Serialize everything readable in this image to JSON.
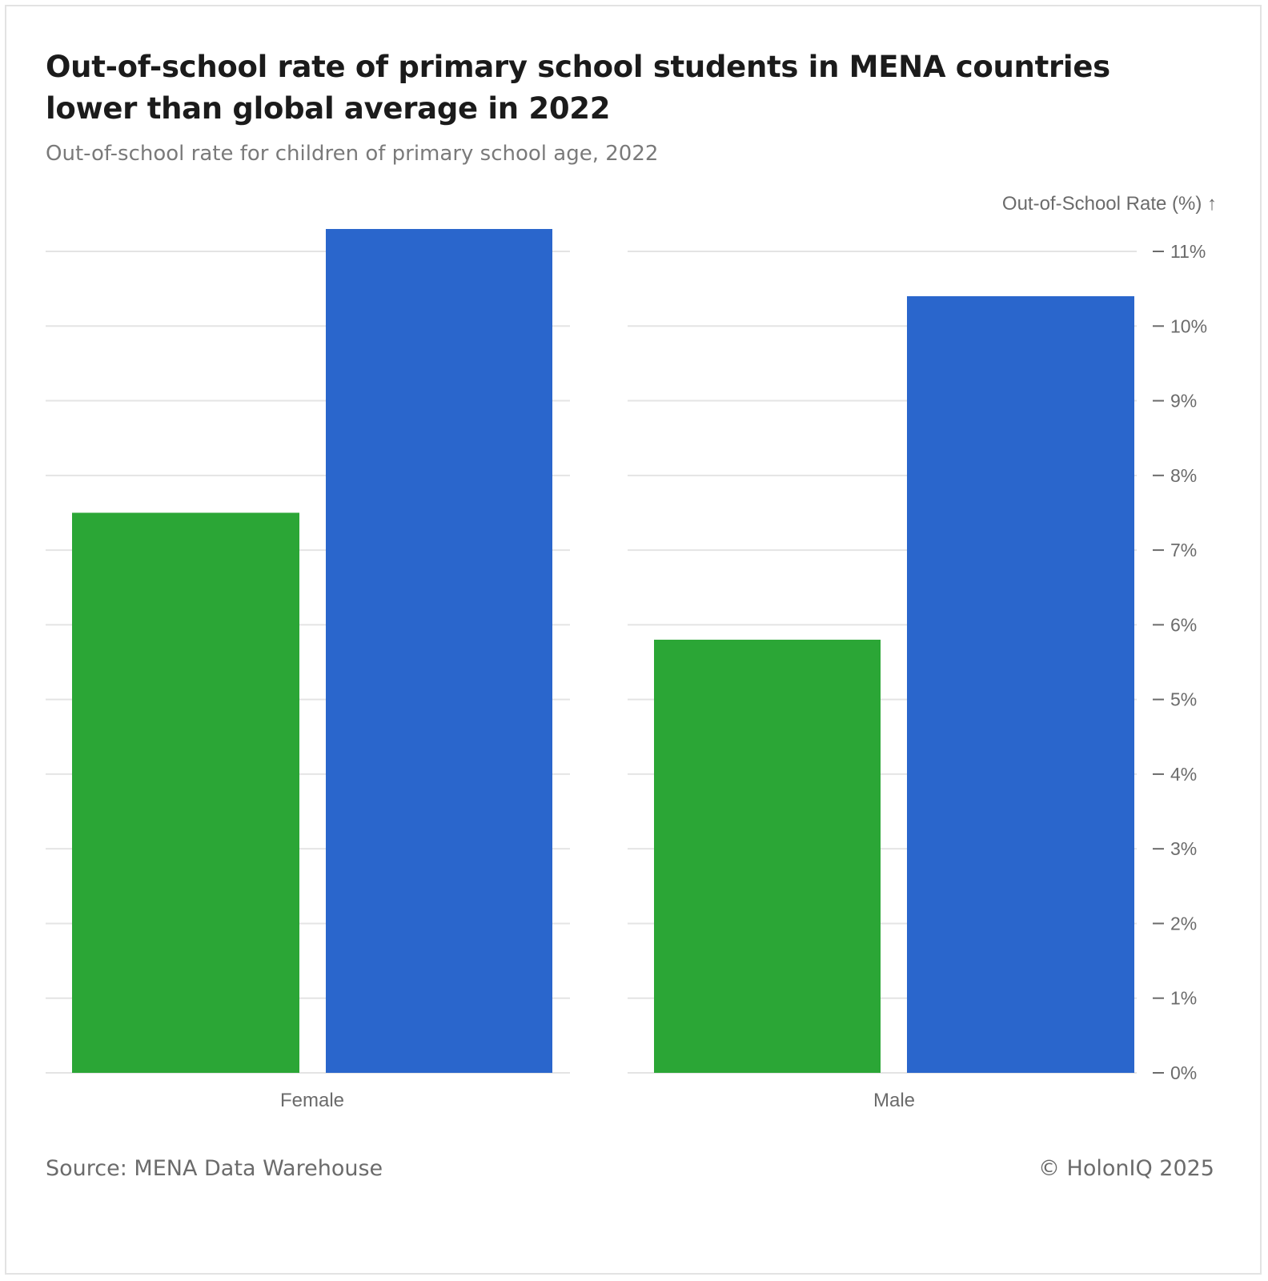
{
  "header": {
    "title": "Out-of-school rate of primary school students in MENA countries lower than global average in 2022",
    "subtitle": "Out-of-school rate for children of primary school age, 2022"
  },
  "footer": {
    "source": "Source: MENA Data Warehouse",
    "credit": "© HolonIQ 2025"
  },
  "colors": {
    "series_1": "#2ba636",
    "series_2": "#2a66cc"
  },
  "chart_data": {
    "type": "bar",
    "title": "Out-of-school rate of primary school students in MENA countries lower than global average in 2022",
    "subtitle": "Out-of-school rate for children of primary school age, 2022",
    "xlabel": "",
    "ylabel": "Out-of-School Rate (%) ↑",
    "ylim": [
      0,
      11
    ],
    "yticks": [
      0,
      1,
      2,
      3,
      4,
      5,
      6,
      7,
      8,
      9,
      10,
      11
    ],
    "ytick_labels": [
      "0%",
      "1%",
      "2%",
      "3%",
      "4%",
      "5%",
      "6%",
      "7%",
      "8%",
      "9%",
      "10%",
      "11%"
    ],
    "categories": [
      "Female",
      "Male"
    ],
    "series": [
      {
        "values": [
          7.5,
          5.8
        ]
      },
      {
        "values": [
          11.3,
          10.4
        ]
      }
    ],
    "grid": true,
    "legend": "none"
  }
}
